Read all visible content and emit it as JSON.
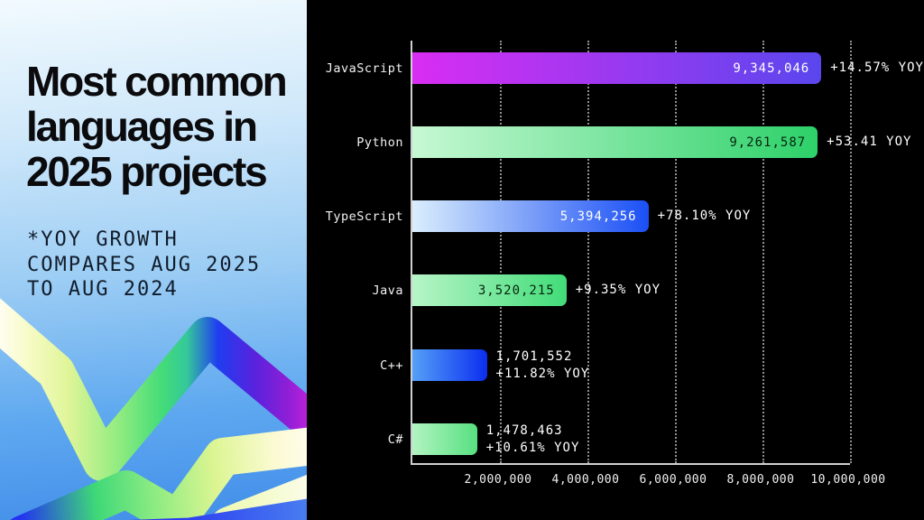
{
  "panel": {
    "title_lines": [
      "Most common",
      "languages in",
      "2025 projects"
    ],
    "footnote_lines": [
      "*YOY GROWTH",
      "COMPARES AUG 2025",
      "TO AUG 2024"
    ],
    "gradient_top": "#f2fafe",
    "gradient_bottom": "#418de9",
    "ribbon_colors": [
      "#fffdf0",
      "#dff598",
      "#44dc78",
      "#1f3df0",
      "#8c1fd6",
      "#c320dc"
    ]
  },
  "chart_data": {
    "type": "bar",
    "orientation": "horizontal",
    "title": "Most common languages in 2025 projects",
    "xlabel": "",
    "ylabel": "",
    "xlim": [
      0,
      10000000
    ],
    "x_ticks": [
      "2,000,000",
      "4,000,000",
      "6,000,000",
      "8,000,000",
      "10,000,000"
    ],
    "x_tick_values": [
      2000000,
      4000000,
      6000000,
      8000000,
      10000000
    ],
    "grid": "dotted-vertical",
    "background": "#000000",
    "categories": [
      "JavaScript",
      "Python",
      "TypeScript",
      "Java",
      "C++",
      "C#"
    ],
    "values": [
      9345046,
      9261587,
      5394256,
      3520215,
      1701552,
      1478463
    ],
    "yoy_growth": [
      "+14.57% YOY",
      "+53.41 YOY",
      "+78.10% YOY",
      "+9.35% YOY",
      "+11.82% YOY",
      "+10.61% YOY"
    ],
    "bars": [
      {
        "label": "JavaScript",
        "value": 9345046,
        "inside_label": "9,345,046",
        "outside_line1": "+14.57% YOY",
        "outside_line2": "",
        "color_start": "#d92df2",
        "color_end": "#5a46ee",
        "inside_text_color": "#ffffff"
      },
      {
        "label": "Python",
        "value": 9261587,
        "inside_label": "9,261,587",
        "outside_line1": "+53.41 YOY",
        "outside_line2": "",
        "color_start": "#c6f8d3",
        "color_end": "#2dd169",
        "inside_text_color": "#07230f"
      },
      {
        "label": "TypeScript",
        "value": 5394256,
        "inside_label": "5,394,256",
        "outside_line1": "+78.10% YOY",
        "outside_line2": "",
        "color_start": "#daeefc",
        "color_end": "#1b4ff5",
        "inside_text_color": "#ffffff"
      },
      {
        "label": "Java",
        "value": 3520215,
        "inside_label": "3,520,215",
        "outside_line1": "+9.35% YOY",
        "outside_line2": "",
        "color_start": "#b7f5c7",
        "color_end": "#41dc78",
        "inside_text_color": "#07230f"
      },
      {
        "label": "C++",
        "value": 1701552,
        "inside_label": "",
        "outside_line1": "1,701,552",
        "outside_line2": "+11.82% YOY",
        "color_start": "#55a0f7",
        "color_end": "#0b2ef0",
        "inside_text_color": "#ffffff"
      },
      {
        "label": "C#",
        "value": 1478463,
        "inside_label": "",
        "outside_line1": "1,478,463",
        "outside_line2": "+10.61% YOY",
        "color_start": "#b2f4c2",
        "color_end": "#57e080",
        "inside_text_color": "#07230f"
      }
    ]
  }
}
